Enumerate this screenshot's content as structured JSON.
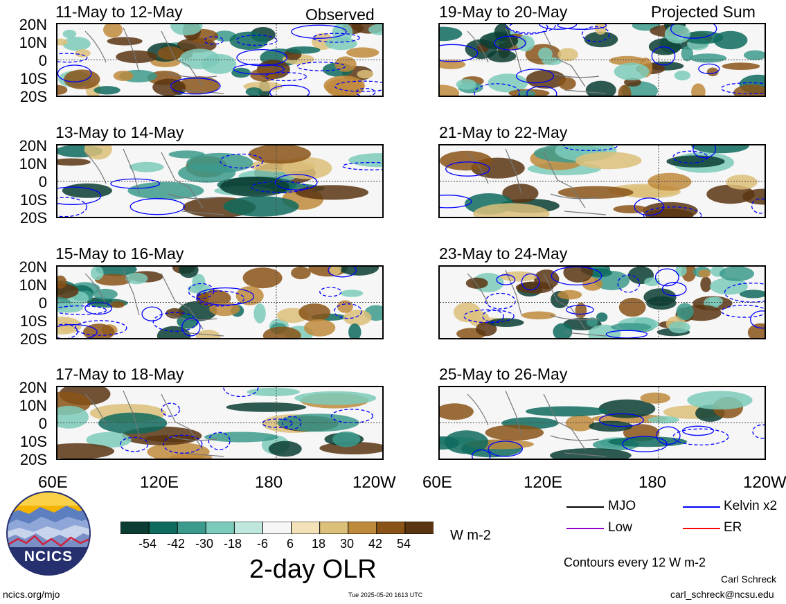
{
  "observed_label": "Observed",
  "projected_label": "Projected Sum",
  "panels_left": [
    {
      "title": "11-May to 12-May"
    },
    {
      "title": "13-May to 14-May"
    },
    {
      "title": "15-May to 16-May"
    },
    {
      "title": "17-May to 18-May"
    }
  ],
  "panels_right": [
    {
      "title": "19-May to 20-May"
    },
    {
      "title": "21-May to 22-May"
    },
    {
      "title": "23-May to 24-May"
    },
    {
      "title": "25-May to 26-May"
    }
  ],
  "lat_labels": [
    "20N",
    "10N",
    "0",
    "10S",
    "20S"
  ],
  "lon_labels": [
    "60E",
    "120E",
    "180",
    "120W"
  ],
  "colorbar": {
    "ticks": [
      "-54",
      "-42",
      "-30",
      "-18",
      "-6",
      "6",
      "18",
      "30",
      "42",
      "54"
    ],
    "colors": [
      "#0b3d32",
      "#0f6b5e",
      "#3c9a8c",
      "#7ccbbb",
      "#bfe7de",
      "#f6f6f6",
      "#f3e2b8",
      "#dcc07a",
      "#c08a3c",
      "#8a5418",
      "#5a3512"
    ],
    "units": "W m-2",
    "title": "2-day OLR"
  },
  "legend": {
    "mjo": "MJO",
    "kelvin": "Kelvin x2",
    "low": "Low",
    "er": "ER",
    "colors": {
      "mjo": "#000000",
      "kelvin": "#0000ff",
      "low": "#9900cc",
      "er": "#ff0000"
    }
  },
  "contours_note": "Contours every 12 W m-2",
  "logo_text": "NCICS",
  "site": "ncics.org/mjo",
  "timestamp": "Tue 2025-05-20 1613 UTC",
  "author": "Carl Schreck",
  "email": "carl_schreck@ncsu.edu"
}
